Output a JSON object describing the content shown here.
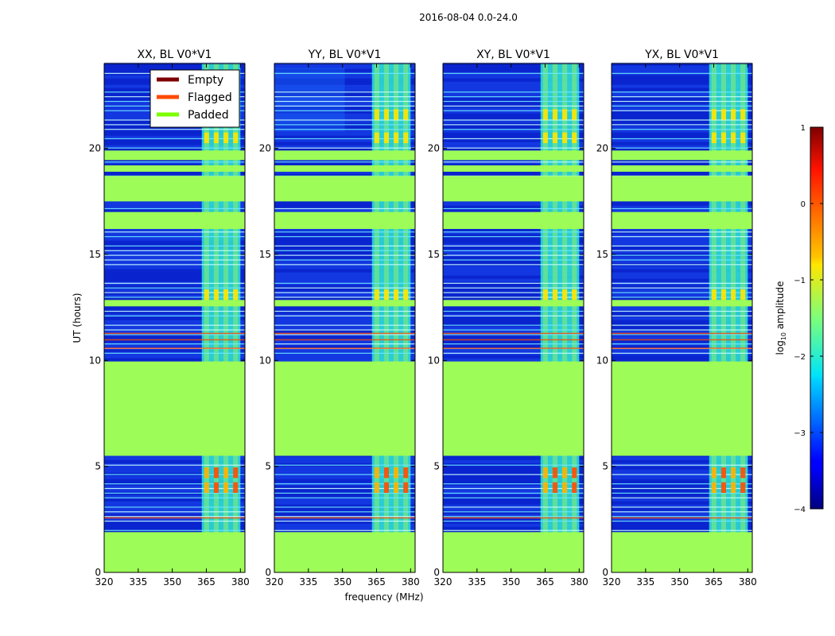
{
  "suptitle": "2016-08-04 0.0-24.0",
  "chart_data": {
    "type": "heatmap",
    "title": "2016-08-04 0.0-24.0",
    "xlabel": "frequency (MHz)",
    "ylabel": "UT (hours)",
    "xlim": [
      320,
      382
    ],
    "ylim": [
      0,
      24
    ],
    "x_ticks": [
      320,
      335,
      350,
      365,
      380
    ],
    "y_ticks": [
      0,
      5,
      10,
      15,
      20
    ],
    "panels": [
      {
        "title": "XX, BL V0*V1",
        "pol": "XX"
      },
      {
        "title": "YY, BL V0*V1",
        "pol": "YY"
      },
      {
        "title": "XY, BL V0*V1",
        "pol": "XY"
      },
      {
        "title": "YX, BL V0*V1",
        "pol": "YX"
      }
    ],
    "padded_ranges_hours": [
      [
        0,
        1.9
      ],
      [
        5.5,
        9.95
      ],
      [
        12.55,
        12.85
      ],
      [
        16.2,
        17.0
      ],
      [
        17.5,
        18.7
      ],
      [
        18.9,
        19.2
      ],
      [
        19.45,
        19.9
      ]
    ],
    "flagged_lines_hours": [
      2.6,
      10.6,
      11.0,
      11.3
    ],
    "rfi_band_mhz": [
      363,
      380
    ],
    "bright_hours": [
      4.0,
      4.7,
      13.1,
      20.5,
      21.6
    ],
    "legend": {
      "placement": "upper-right of first panel",
      "entries": [
        {
          "label": "Empty",
          "color": "#7f0000"
        },
        {
          "label": "Flagged",
          "color": "#ff4a00"
        },
        {
          "label": "Padded",
          "color": "#7cff00"
        }
      ]
    },
    "colorbar": {
      "label_prefix": "log",
      "label_sub": "10",
      "label_suffix": " amplitude",
      "range": [
        -4,
        1
      ],
      "ticks": [
        "1",
        "0",
        "−1",
        "−2",
        "−3",
        "−4"
      ],
      "colormap": "jet"
    },
    "colors": {
      "padded": "#9dfc57",
      "background": "#0a22c8"
    }
  }
}
